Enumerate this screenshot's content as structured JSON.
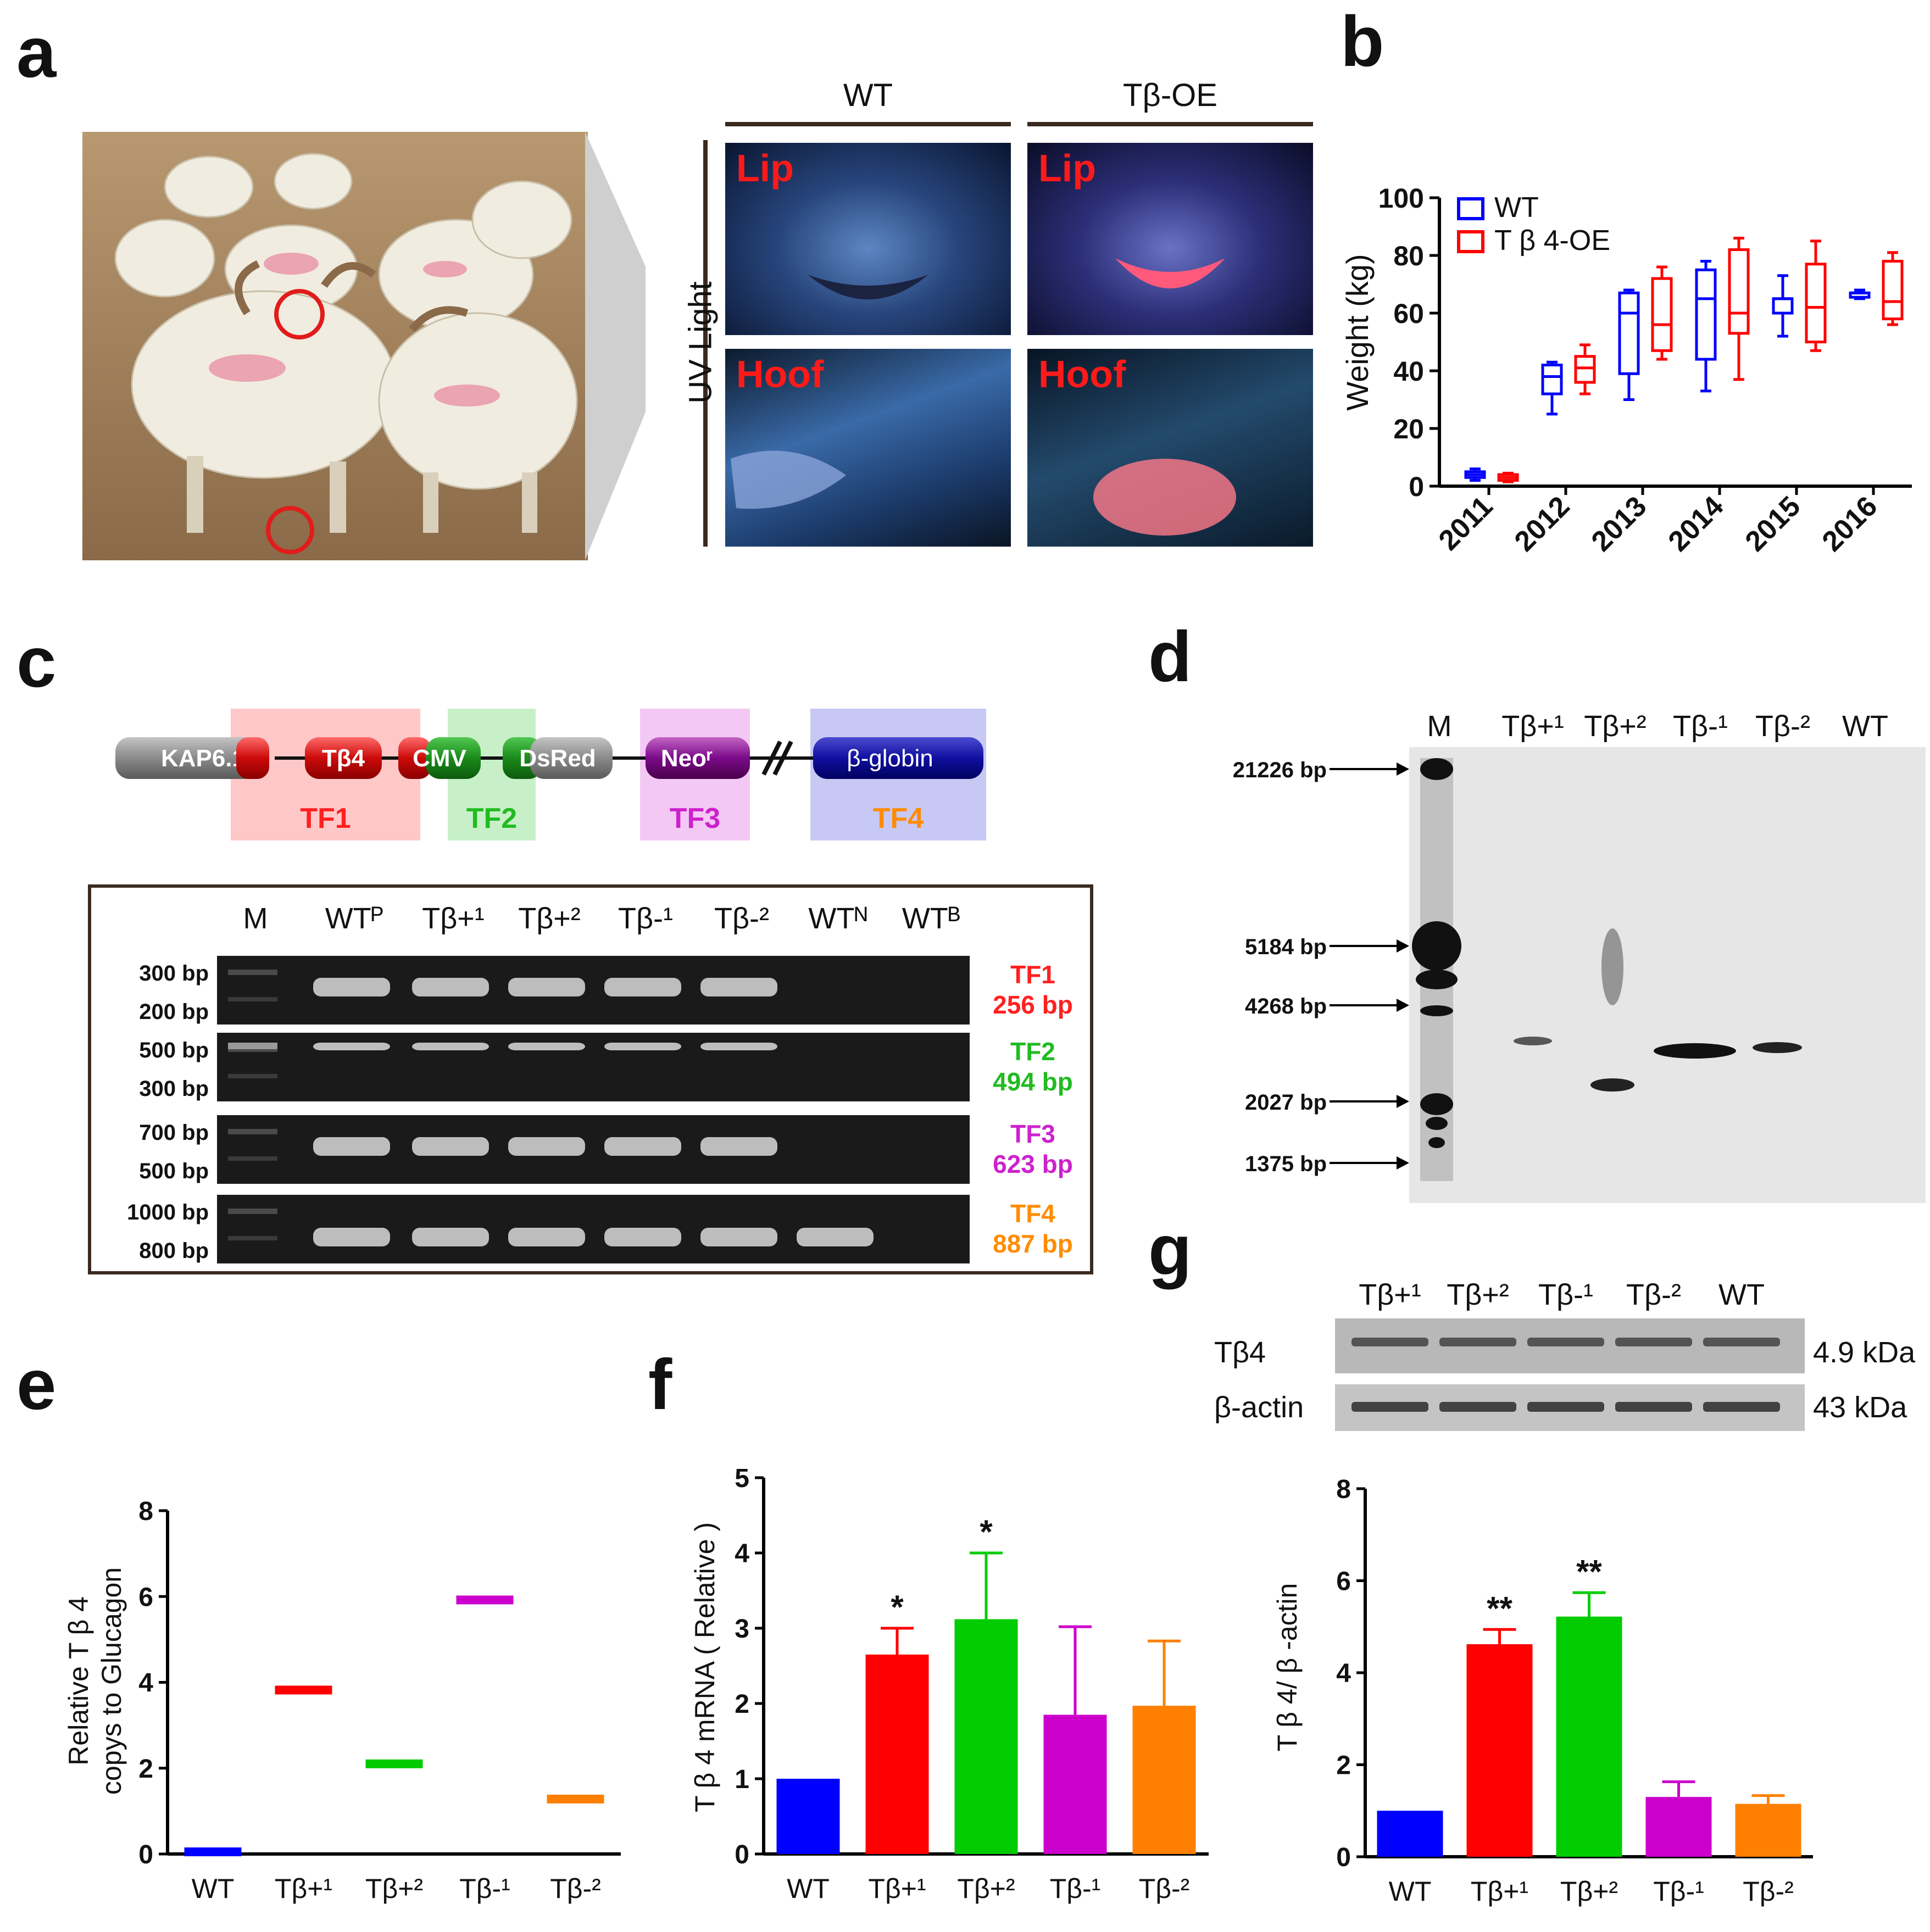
{
  "panel_labels": {
    "a": "a",
    "b": "b",
    "c": "c",
    "d": "d",
    "e": "e",
    "f": "f",
    "g": "g"
  },
  "colors": {
    "wt": "#0000ff",
    "tb_plus1": "#ff0000",
    "tb_plus2": "#00cc00",
    "tb_minus1": "#cc00cc",
    "tb_minus2": "#ff8000",
    "tf1": "#ff2020",
    "tf2": "#22bb22",
    "tf3": "#cc22cc",
    "tf4": "#ff8c00"
  },
  "panel_a": {
    "col_wt": "WT",
    "col_oe": "Tβ-OE",
    "row_label": "UV Light",
    "tiles": {
      "wt_lip": "Lip",
      "oe_lip": "Lip",
      "wt_hoof": "Hoof",
      "oe_hoof": "Hoof"
    }
  },
  "panel_c": {
    "construct": {
      "kap": "KAP6.1",
      "tb4": "Tβ4",
      "cmv": "CMV",
      "dsred": "DsRed",
      "neo": "Neoʳ",
      "bglobin": "β-globin"
    },
    "fragments": [
      "TF1",
      "TF2",
      "TF3",
      "TF4"
    ],
    "gel": {
      "lanes": [
        "M",
        "WTᴾ",
        "Tβ+¹",
        "Tβ+²",
        "Tβ-¹",
        "Tβ-²",
        "WTᴺ",
        "WTᴮ"
      ],
      "rows": [
        {
          "top": "300 bp",
          "bottom": "200 bp",
          "name": "TF1",
          "size": "256 bp"
        },
        {
          "top": "500 bp",
          "bottom": "300 bp",
          "name": "TF2",
          "size": "494 bp"
        },
        {
          "top": "700 bp",
          "bottom": "500 bp",
          "name": "TF3",
          "size": "623 bp"
        },
        {
          "top": "1000 bp",
          "bottom": "800 bp",
          "name": "TF4",
          "size": "887 bp"
        }
      ]
    }
  },
  "panel_d": {
    "lanes": [
      "M",
      "Tβ+¹",
      "Tβ+²",
      "Tβ-¹",
      "Tβ-²",
      "WT"
    ],
    "markers": [
      "21226 bp",
      "5184 bp",
      "4268 bp",
      "2027 bp",
      "1375 bp"
    ]
  },
  "panel_g_blot": {
    "lanes": [
      "Tβ+¹",
      "Tβ+²",
      "Tβ-¹",
      "Tβ-²",
      "WT"
    ],
    "rows": [
      {
        "name": "Tβ4",
        "size": "4.9 kDa"
      },
      {
        "name": "β-actin",
        "size": "43 kDa"
      }
    ]
  },
  "chart_data": [
    {
      "id": "b",
      "type": "box",
      "ylabel": "Weight (kg)",
      "ylim": [
        0,
        100
      ],
      "yticks": [
        "0",
        "20",
        "40",
        "60",
        "80",
        "100"
      ],
      "categories": [
        "2011",
        "2012",
        "2013",
        "2014",
        "2015",
        "2016"
      ],
      "legend": [
        "WT",
        "T β 4-OE"
      ],
      "series": [
        {
          "name": "WT",
          "color": "#0000ff",
          "boxes": [
            [
              2,
              3,
              4,
              5,
              6
            ],
            [
              25,
              32,
              38,
              42,
              43
            ],
            [
              30,
              39,
              60,
              67,
              68
            ],
            [
              33,
              44,
              65,
              75,
              78
            ],
            [
              52,
              60,
              65,
              65,
              73
            ],
            [
              65,
              65.5,
              67,
              67,
              68
            ]
          ]
        },
        {
          "name": "T β 4-OE",
          "color": "#ff0000",
          "boxes": [
            [
              1.5,
              2,
              3,
              4,
              4.5
            ],
            [
              32,
              36,
              41,
              45,
              49
            ],
            [
              44,
              47,
              56,
              72,
              76
            ],
            [
              37,
              53,
              60,
              82,
              86
            ],
            [
              47,
              50,
              62,
              77,
              85
            ],
            [
              56,
              58,
              64,
              78,
              81
            ]
          ]
        }
      ]
    },
    {
      "id": "e",
      "type": "scatter",
      "ylabel_line1": "Relative T β 4",
      "ylabel_line2": "copys to Glucagon",
      "ylim": [
        0,
        8
      ],
      "yticks": [
        "0",
        "2",
        "4",
        "6",
        "8"
      ],
      "categories": [
        "WT",
        "Tβ+¹",
        "Tβ+²",
        "Tβ-¹",
        "Tβ-²"
      ],
      "values": [
        0.05,
        3.82,
        2.1,
        5.92,
        1.28
      ],
      "colors": [
        "#0000ff",
        "#ff0000",
        "#00cc00",
        "#cc00cc",
        "#ff8000"
      ]
    },
    {
      "id": "f",
      "type": "bar",
      "ylabel": "T β 4 mRNA ( Relative )",
      "ylim": [
        0,
        5
      ],
      "yticks": [
        "0",
        "1",
        "2",
        "3",
        "4",
        "5"
      ],
      "categories": [
        "WT",
        "Tβ+¹",
        "Tβ+²",
        "Tβ-¹",
        "Tβ-²"
      ],
      "values": [
        1.0,
        2.65,
        3.12,
        1.85,
        1.97
      ],
      "errors": [
        0,
        0.35,
        0.88,
        1.17,
        0.86
      ],
      "annotations": [
        "",
        "*",
        "*",
        "",
        ""
      ],
      "colors": [
        "#0000ff",
        "#ff0000",
        "#00cc00",
        "#cc00cc",
        "#ff8000"
      ]
    },
    {
      "id": "g",
      "type": "bar",
      "ylabel": "T β 4/ β -actin",
      "ylim": [
        0,
        8
      ],
      "yticks": [
        "0",
        "2",
        "4",
        "6",
        "8"
      ],
      "categories": [
        "WT",
        "Tβ+¹",
        "Tβ+²",
        "Tβ-¹",
        "Tβ-²"
      ],
      "values": [
        1.0,
        4.62,
        5.22,
        1.3,
        1.15
      ],
      "errors": [
        0,
        0.32,
        0.52,
        0.33,
        0.18
      ],
      "annotations": [
        "",
        "**",
        "**",
        "",
        ""
      ],
      "colors": [
        "#0000ff",
        "#ff0000",
        "#00cc00",
        "#cc00cc",
        "#ff8000"
      ]
    }
  ]
}
